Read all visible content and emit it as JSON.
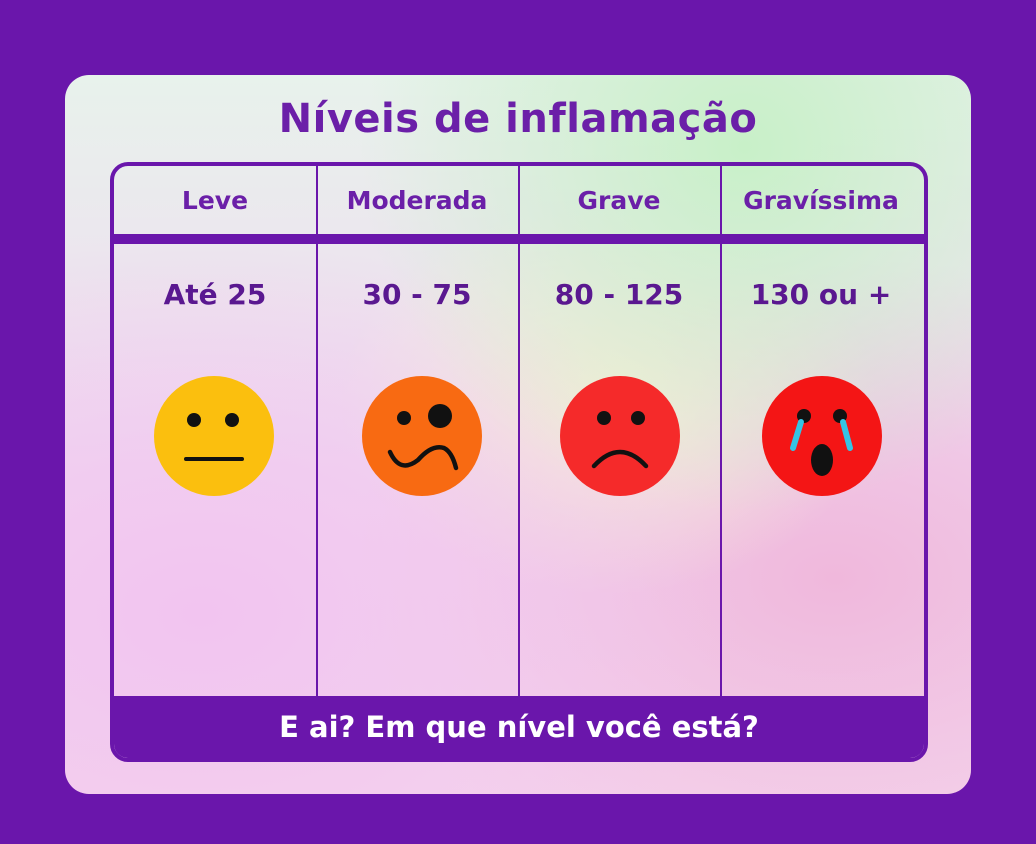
{
  "title": "Níveis de inflamação",
  "levels": [
    {
      "name": "Leve",
      "range": "Até 25",
      "face": "neutral-face-icon",
      "color": "#fbbf0e"
    },
    {
      "name": "Moderada",
      "range": "30 - 75",
      "face": "confused-face-icon",
      "color": "#f86a12"
    },
    {
      "name": "Grave",
      "range": "80 - 125",
      "face": "sad-face-icon",
      "color": "#f52a2a"
    },
    {
      "name": "Gravíssima",
      "range": "130 ou +",
      "face": "crying-face-icon",
      "color": "#f41515"
    }
  ],
  "footer": "E ai? Em que nível você está?",
  "colors": {
    "background": "#6a16ab",
    "accent": "#6b1fa8",
    "tears": "#35c4e4"
  }
}
